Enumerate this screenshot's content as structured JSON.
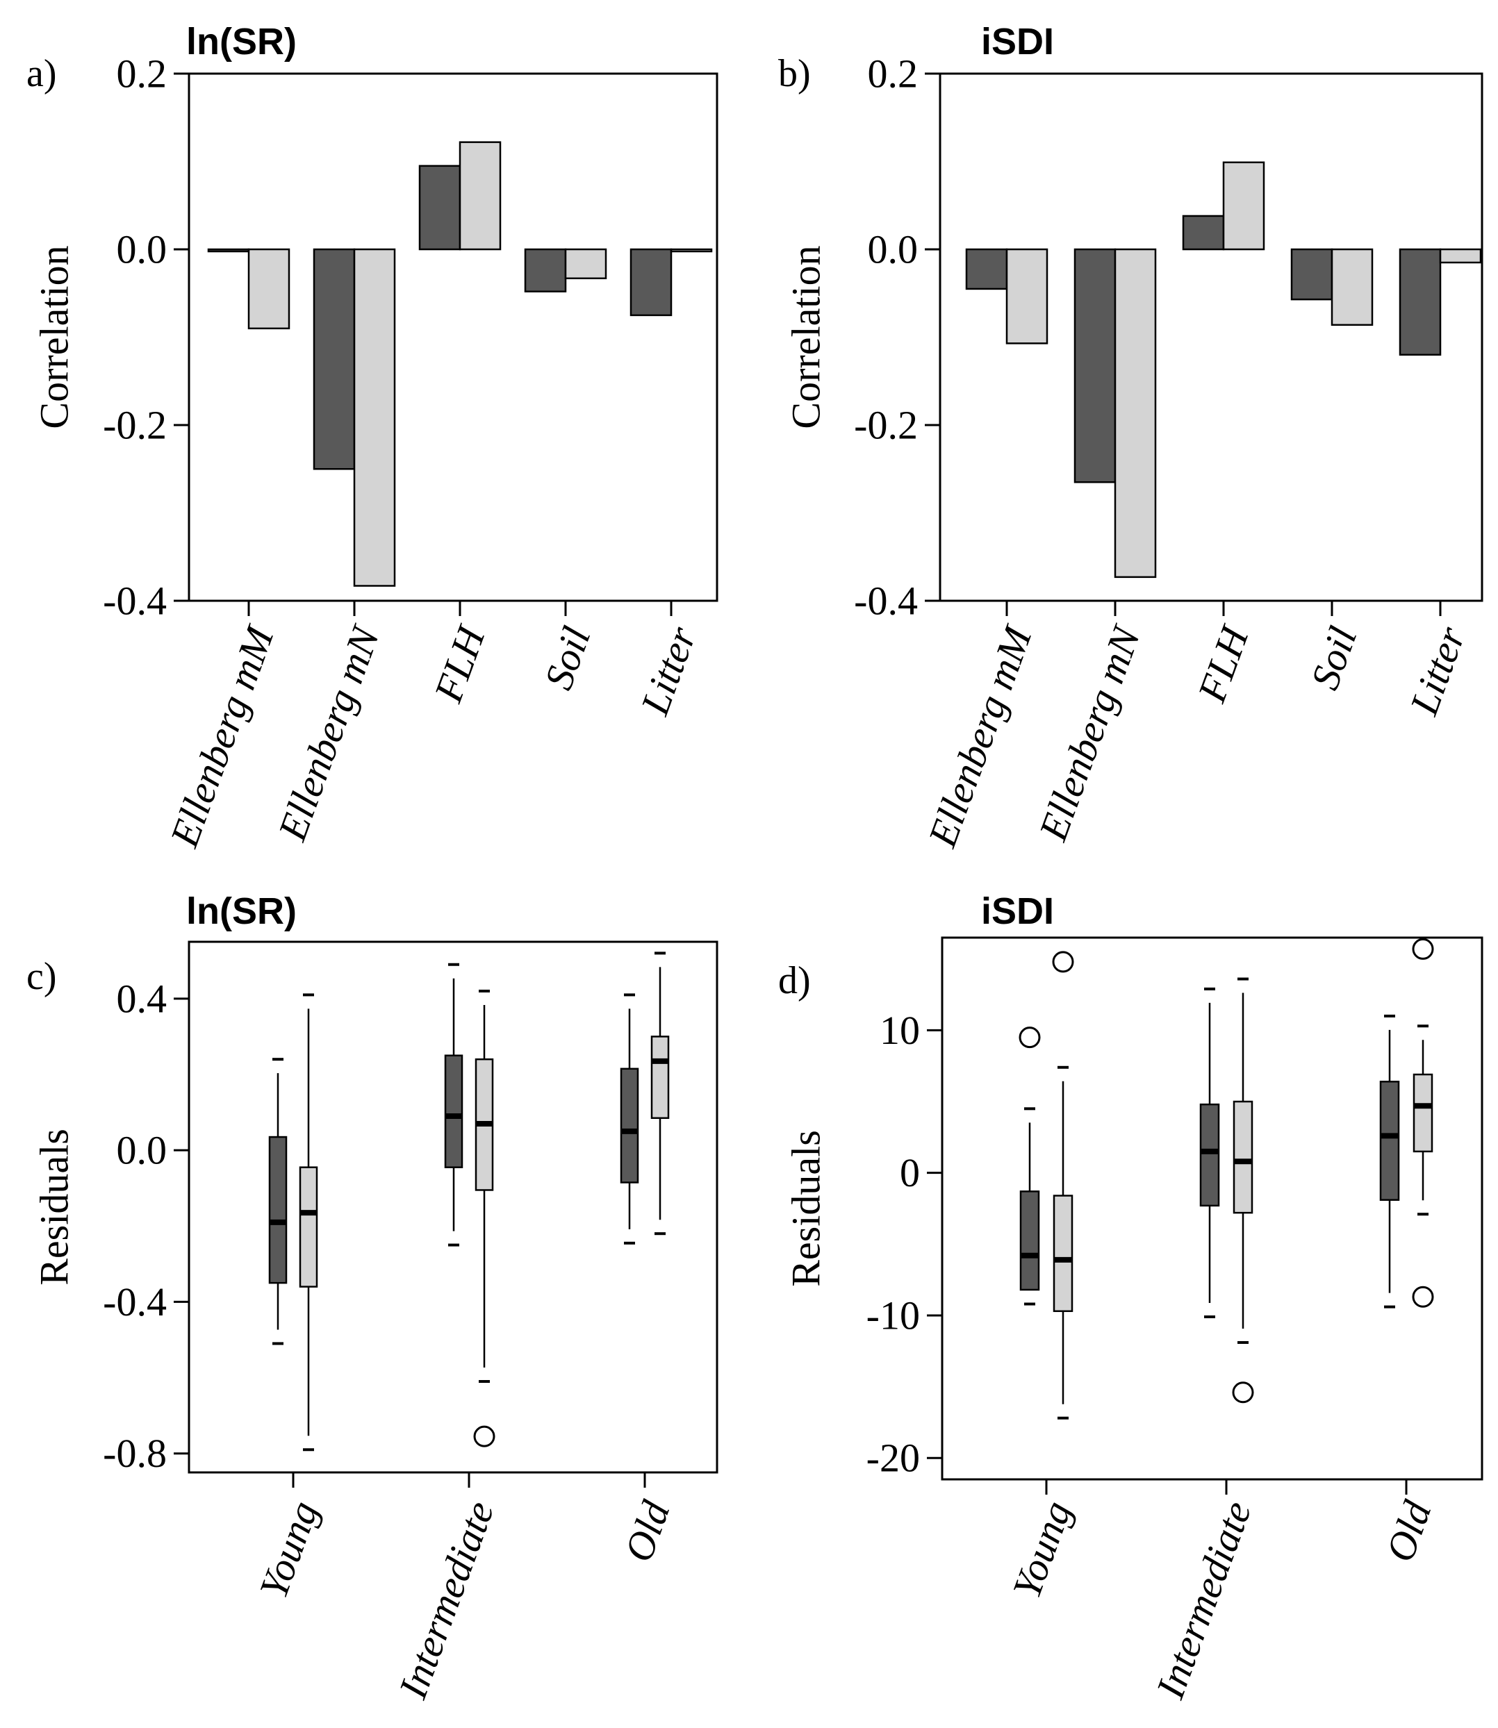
{
  "colors": {
    "dark": "#595959",
    "light": "#d4d4d4",
    "stroke": "#000000"
  },
  "chart_data": [
    {
      "id": "a",
      "panel_label": "a)",
      "type": "bar",
      "title": "ln(SR)",
      "ylabel": "Correlation",
      "ylim": [
        -0.4,
        0.2
      ],
      "yticks": [
        -0.4,
        -0.2,
        0.0,
        0.2
      ],
      "ytick_labels": [
        "-0.4",
        "-0.2",
        "0.0",
        "0.2"
      ],
      "categories": [
        "Ellenberg mM",
        "Ellenberg mN",
        "FLH",
        "Soil",
        "Litter"
      ],
      "series": [
        {
          "name": "dark",
          "values": [
            -0.002,
            -0.25,
            0.095,
            -0.048,
            -0.075
          ]
        },
        {
          "name": "light",
          "values": [
            -0.09,
            -0.383,
            0.122,
            -0.033,
            -0.002
          ]
        }
      ]
    },
    {
      "id": "b",
      "panel_label": "b)",
      "type": "bar",
      "title": "iSDI",
      "ylabel": "Correlation",
      "ylim": [
        -0.4,
        0.2
      ],
      "yticks": [
        -0.4,
        -0.2,
        0.0,
        0.2
      ],
      "ytick_labels": [
        "-0.4",
        "-0.2",
        "0.0",
        "0.2"
      ],
      "categories": [
        "Ellenberg mM",
        "Ellenberg mN",
        "FLH",
        "Soil",
        "Litter"
      ],
      "series": [
        {
          "name": "dark",
          "values": [
            -0.045,
            -0.265,
            0.038,
            -0.057,
            -0.12
          ]
        },
        {
          "name": "light",
          "values": [
            -0.107,
            -0.373,
            0.099,
            -0.086,
            -0.015
          ]
        }
      ]
    },
    {
      "id": "c",
      "panel_label": "c)",
      "type": "box",
      "title": "ln(SR)",
      "ylabel": "Residuals",
      "ylim": [
        -0.85,
        0.55
      ],
      "yticks": [
        -0.8,
        -0.4,
        0.0,
        0.4
      ],
      "ytick_labels": [
        "-0.8",
        "-0.4",
        "0.0",
        "0.4"
      ],
      "categories": [
        "Young",
        "Intermediate",
        "Old"
      ],
      "boxes": [
        {
          "group": "Young",
          "series": "dark",
          "min": -0.51,
          "q1": -0.35,
          "median": -0.19,
          "q3": 0.035,
          "max": 0.24,
          "outliers": []
        },
        {
          "group": "Young",
          "series": "light",
          "min": -0.79,
          "q1": -0.36,
          "median": -0.165,
          "q3": -0.045,
          "max": 0.41,
          "outliers": []
        },
        {
          "group": "Intermediate",
          "series": "dark",
          "min": -0.25,
          "q1": -0.045,
          "median": 0.09,
          "q3": 0.25,
          "max": 0.49,
          "outliers": []
        },
        {
          "group": "Intermediate",
          "series": "light",
          "min": -0.61,
          "q1": -0.105,
          "median": 0.07,
          "q3": 0.24,
          "max": 0.42,
          "outliers": [
            -0.755
          ]
        },
        {
          "group": "Old",
          "series": "dark",
          "min": -0.245,
          "q1": -0.085,
          "median": 0.05,
          "q3": 0.215,
          "max": 0.41,
          "outliers": []
        },
        {
          "group": "Old",
          "series": "light",
          "min": -0.22,
          "q1": 0.085,
          "median": 0.235,
          "q3": 0.3,
          "max": 0.52,
          "outliers": []
        }
      ]
    },
    {
      "id": "d",
      "panel_label": "d)",
      "type": "box",
      "title": "iSDI",
      "ylabel": "Residuals",
      "ylim": [
        -21.5,
        16.5
      ],
      "yticks": [
        -20,
        -10,
        0,
        10
      ],
      "ytick_labels": [
        "-20",
        "-10",
        "0",
        "10"
      ],
      "categories": [
        "Young",
        "Intermediate",
        "Old"
      ],
      "boxes": [
        {
          "group": "Young",
          "series": "dark",
          "min": -9.2,
          "q1": -8.2,
          "median": -5.8,
          "q3": -1.3,
          "max": 4.5,
          "outliers": [
            9.5
          ]
        },
        {
          "group": "Young",
          "series": "light",
          "min": -17.2,
          "q1": -9.7,
          "median": -6.1,
          "q3": -1.6,
          "max": 7.4,
          "outliers": [
            14.8
          ]
        },
        {
          "group": "Intermediate",
          "series": "dark",
          "min": -10.1,
          "q1": -2.3,
          "median": 1.5,
          "q3": 4.8,
          "max": 12.9,
          "outliers": []
        },
        {
          "group": "Intermediate",
          "series": "light",
          "min": -11.9,
          "q1": -2.8,
          "median": 0.8,
          "q3": 5.0,
          "max": 13.6,
          "outliers": [
            -15.4
          ]
        },
        {
          "group": "Old",
          "series": "dark",
          "min": -9.4,
          "q1": -1.9,
          "median": 2.6,
          "q3": 6.4,
          "max": 11.0,
          "outliers": []
        },
        {
          "group": "Old",
          "series": "light",
          "min": -2.9,
          "q1": 1.5,
          "median": 4.7,
          "q3": 6.9,
          "max": 10.3,
          "outliers": [
            15.7,
            -8.7
          ]
        }
      ]
    }
  ]
}
